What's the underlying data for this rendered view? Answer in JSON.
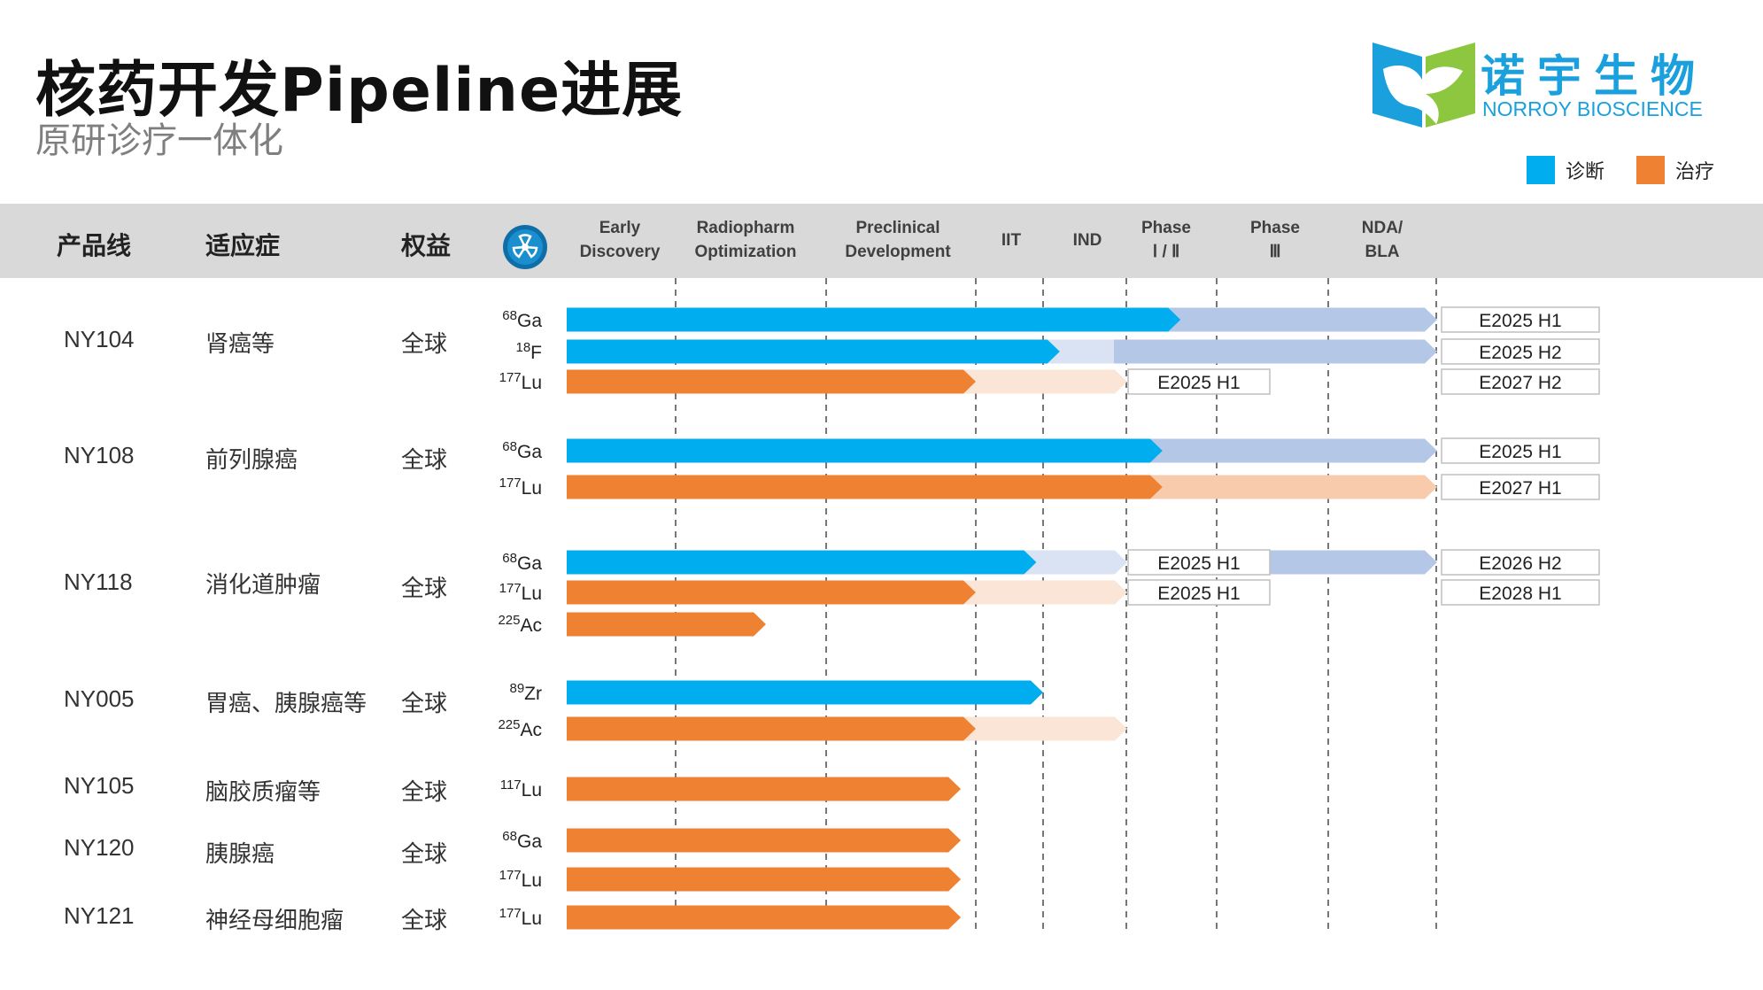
{
  "header": {
    "title": "核药开发Pipeline进展",
    "subtitle": "原研诊疗一体化",
    "logo_cn": "诺宇生物",
    "logo_en": "NORROY BIOSCIENCE"
  },
  "legend": [
    {
      "label": "诊断",
      "color": "#00aeef"
    },
    {
      "label": "治疗",
      "color": "#ef8133"
    }
  ],
  "table_header": {
    "product_line": "产品线",
    "indication": "适应症",
    "rights": "权益"
  },
  "rows": [
    {
      "product": "NY104",
      "indication": "肾癌等",
      "rights": "全球"
    },
    {
      "product": "NY108",
      "indication": "前列腺癌",
      "rights": "全球"
    },
    {
      "product": "NY118",
      "indication": "消化道肿瘤",
      "rights": "全球"
    },
    {
      "product": "NY005",
      "indication": "胃癌、胰腺癌等",
      "rights": "全球"
    },
    {
      "product": "NY105",
      "indication": "脑胶质瘤等",
      "rights": "全球"
    },
    {
      "product": "NY120",
      "indication": "胰腺癌",
      "rights": "全球"
    },
    {
      "product": "NY121",
      "indication": "神经母细胞瘤",
      "rights": "全球"
    }
  ],
  "colors": {
    "diagnosis": "#00aeef",
    "diagnosis_planned": "#b4c7e7",
    "diagnosis_planned_light": "#dae3f3",
    "therapy": "#ef8133",
    "therapy_planned": "#f8cbad",
    "therapy_planned_light": "#fbe5d6",
    "header_band": "#d9d9d9"
  },
  "chart_data": {
    "type": "table",
    "stages": [
      [
        "Early",
        "Discovery"
      ],
      [
        "Radiopharm",
        "Optimization"
      ],
      [
        "Preclinical",
        "Development"
      ],
      [
        "IIT"
      ],
      [
        "IND"
      ],
      [
        "Phase",
        "Ⅰ / Ⅱ"
      ],
      [
        "Phase",
        "Ⅲ"
      ],
      [
        "NDA/",
        "BLA"
      ]
    ],
    "programs": [
      {
        "product": "NY104",
        "isotope_mass": "68",
        "isotope_symbol": "Ga",
        "type": "diagnosis",
        "current_stage": 5.6,
        "planned_to": 8,
        "milestones": [
          {
            "label": "E2025 H1",
            "stage": 8
          }
        ]
      },
      {
        "product": "NY104",
        "isotope_mass": "18",
        "isotope_symbol": "F",
        "type": "diagnosis",
        "current_stage": 4.2,
        "planned_to": 8,
        "milestones": [
          {
            "label": "E2025 H2",
            "stage": 8
          }
        ]
      },
      {
        "product": "NY104",
        "isotope_mass": "177",
        "isotope_symbol": "Lu",
        "type": "therapy",
        "current_stage": 3.0,
        "planned_to": 5,
        "milestones": [
          {
            "label": "E2025 H1",
            "stage": 5
          },
          {
            "label": "E2027 H2",
            "stage": 8
          }
        ]
      },
      {
        "product": "NY108",
        "isotope_mass": "68",
        "isotope_symbol": "Ga",
        "type": "diagnosis",
        "current_stage": 5.4,
        "planned_to": 8,
        "milestones": [
          {
            "label": "E2025 H1",
            "stage": 8
          }
        ]
      },
      {
        "product": "NY108",
        "isotope_mass": "177",
        "isotope_symbol": "Lu",
        "type": "therapy",
        "current_stage": 5.4,
        "planned_to": 8,
        "milestones": [
          {
            "label": "E2027 H1",
            "stage": 8
          }
        ]
      },
      {
        "product": "NY118",
        "isotope_mass": "68",
        "isotope_symbol": "Ga",
        "type": "diagnosis",
        "current_stage": 3.9,
        "planned_to": 8,
        "milestones": [
          {
            "label": "E2025 H1",
            "stage": 5
          },
          {
            "label": "E2026 H2",
            "stage": 8
          }
        ]
      },
      {
        "product": "NY118",
        "isotope_mass": "177",
        "isotope_symbol": "Lu",
        "type": "therapy",
        "current_stage": 3.0,
        "planned_to": 5,
        "milestones": [
          {
            "label": "E2025 H1",
            "stage": 5
          },
          {
            "label": "E2028 H1",
            "stage": 8
          }
        ]
      },
      {
        "product": "NY118",
        "isotope_mass": "225",
        "isotope_symbol": "Ac",
        "type": "therapy",
        "current_stage": 1.6,
        "planned_to": null,
        "milestones": []
      },
      {
        "product": "NY005",
        "isotope_mass": "89",
        "isotope_symbol": "Zr",
        "type": "diagnosis",
        "current_stage": 4.0,
        "planned_to": null,
        "milestones": []
      },
      {
        "product": "NY005",
        "isotope_mass": "225",
        "isotope_symbol": "Ac",
        "type": "therapy",
        "current_stage": 3.0,
        "planned_to": 5,
        "milestones": []
      },
      {
        "product": "NY105",
        "isotope_mass": "117",
        "isotope_symbol": "Lu",
        "type": "therapy",
        "current_stage": 2.9,
        "planned_to": null,
        "milestones": []
      },
      {
        "product": "NY120",
        "isotope_mass": "68",
        "isotope_symbol": "Ga",
        "type": "therapy",
        "current_stage": 2.9,
        "planned_to": null,
        "milestones": []
      },
      {
        "product": "NY120",
        "isotope_mass": "177",
        "isotope_symbol": "Lu",
        "type": "therapy",
        "current_stage": 2.9,
        "planned_to": null,
        "milestones": []
      },
      {
        "product": "NY121",
        "isotope_mass": "177",
        "isotope_symbol": "Lu",
        "type": "therapy",
        "current_stage": 2.9,
        "planned_to": null,
        "milestones": []
      }
    ]
  }
}
